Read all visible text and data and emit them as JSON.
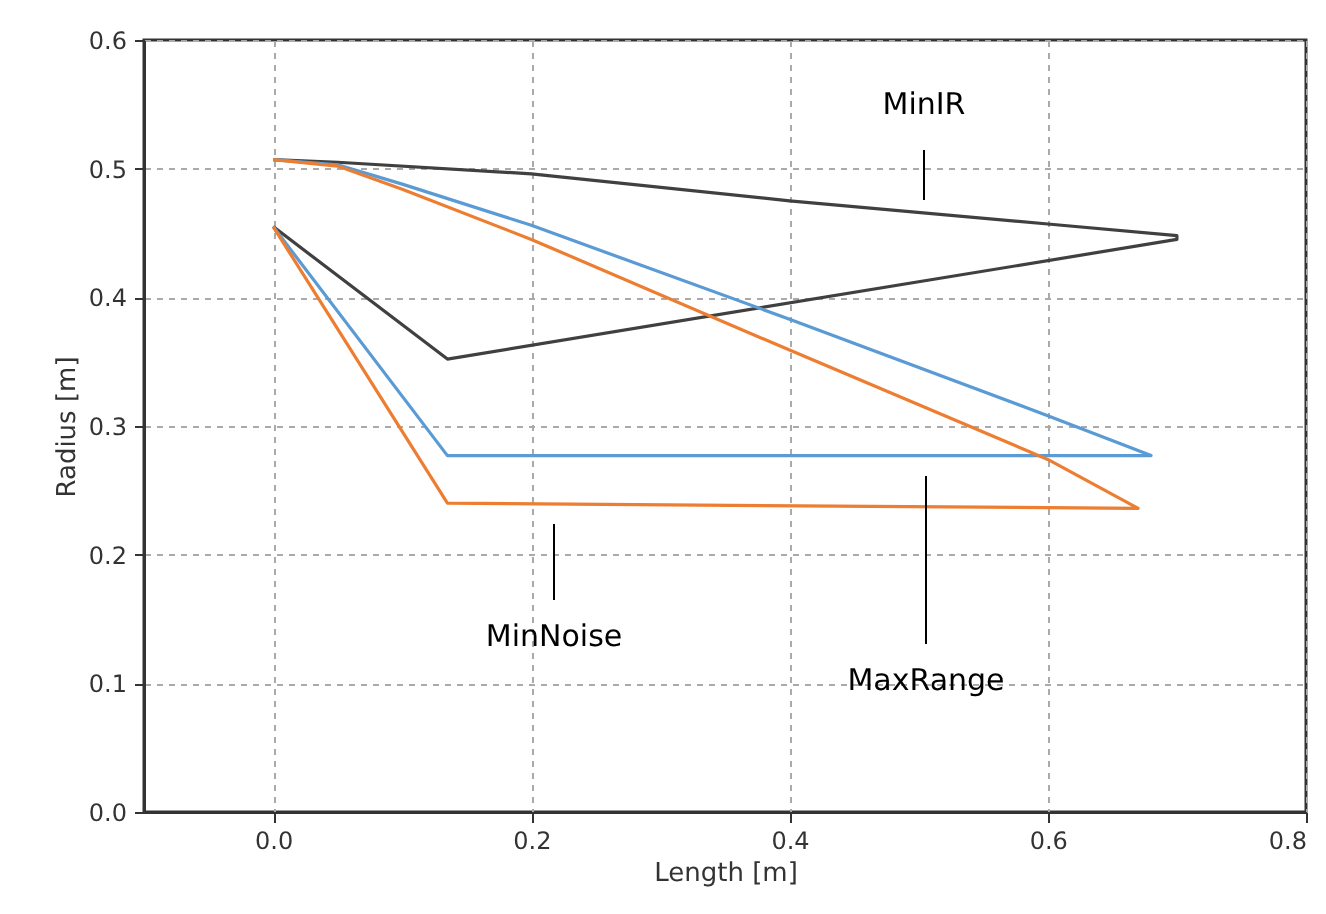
{
  "chart_data": {
    "type": "line",
    "xlabel": "Length [m]",
    "ylabel": "Radius [m]",
    "xlim": [
      -0.1,
      0.8
    ],
    "xticks": [
      {
        "value": 0,
        "label": "0.0"
      },
      0.2,
      0.4,
      0.6,
      0.8
    ],
    "ylim": [
      0,
      0.6
    ],
    "yticks": [
      {
        "value": 0,
        "label": "0.0"
      },
      0.1,
      0.2,
      0.3,
      0.4,
      0.5,
      0.6
    ],
    "grid": true,
    "marker": "none",
    "line_style": "solid",
    "series": [
      {
        "color": "#404040",
        "x": [
          0,
          0.135,
          0.7,
          0.7,
          0.6,
          0.4,
          0.2,
          0.05,
          0
        ],
        "values": [
          0.455,
          0.352,
          0.445,
          0.448,
          0.457,
          0.475,
          0.496,
          0.505,
          0.507
        ]
      },
      {
        "color": "#5b9bd5",
        "x": [
          0,
          0.135,
          0.68,
          0.6,
          0.4,
          0.2,
          0.1,
          0.05,
          0
        ],
        "values": [
          0.455,
          0.277,
          0.277,
          0.308,
          0.383,
          0.456,
          0.488,
          0.503,
          0.507
        ]
      },
      {
        "color": "#ed7d31",
        "x": [
          0,
          0.135,
          0.67,
          0.6,
          0.4,
          0.2,
          0.1,
          0.05,
          0
        ],
        "values": [
          0.455,
          0.24,
          0.236,
          0.274,
          0.359,
          0.445,
          0.484,
          0.502,
          0.507
        ]
      }
    ],
    "annotations": [
      "MinIR",
      "MaxRange",
      "MinNoise"
    ]
  }
}
